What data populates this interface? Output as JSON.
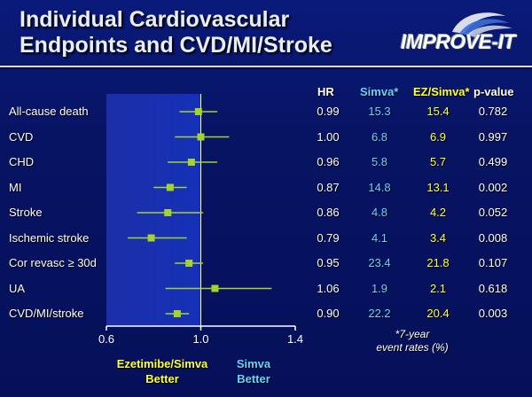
{
  "title_line1": "Individual Cardiovascular",
  "title_line2": "Endpoints and CVD/MI/Stroke",
  "logo_text": "IMPROVE-IT",
  "columns": {
    "hr": "HR",
    "simva": "Simva*",
    "ezsimva": "EZ/Simva*",
    "pvalue": "p-value"
  },
  "rows": [
    {
      "label": "All-cause death",
      "hr": "0.99",
      "simva": "15.3",
      "ezsimva": "15.4",
      "p": "0.782"
    },
    {
      "label": "CVD",
      "hr": "1.00",
      "simva": "6.8",
      "ezsimva": "6.9",
      "p": "0.997"
    },
    {
      "label": "CHD",
      "hr": "0.96",
      "simva": "5.8",
      "ezsimva": "5.7",
      "p": "0.499"
    },
    {
      "label": "MI",
      "hr": "0.87",
      "simva": "14.8",
      "ezsimva": "13.1",
      "p": "0.002"
    },
    {
      "label": "Stroke",
      "hr": "0.86",
      "simva": "4.8",
      "ezsimva": "4.2",
      "p": "0.052"
    },
    {
      "label": "Ischemic stroke",
      "hr": "0.79",
      "simva": "4.1",
      "ezsimva": "3.4",
      "p": "0.008"
    },
    {
      "label": "Cor revasc ≥ 30d",
      "hr": "0.95",
      "simva": "23.4",
      "ezsimva": "21.8",
      "p": "0.107"
    },
    {
      "label": "UA",
      "hr": "1.06",
      "simva": "1.9",
      "ezsimva": "2.1",
      "p": "0.618"
    },
    {
      "label": "CVD/MI/stroke",
      "hr": "0.90",
      "simva": "22.2",
      "ezsimva": "20.4",
      "p": "0.003"
    }
  ],
  "note_line1": "*7-year",
  "note_line2": "event rates (%)",
  "left_better_line1": "Ezetimibe/Simva",
  "left_better_line2": "Better",
  "right_better_line1": "Simva",
  "right_better_line2": "Better",
  "colors": {
    "background": "#071463",
    "marker": "#a6d22c",
    "cyan": "#66d4ff",
    "yellow": "#ffff33"
  },
  "chart_data": {
    "type": "forest",
    "xlim": [
      0.6,
      1.4
    ],
    "x_ticks": [
      "0.6",
      "1.0",
      "1.4"
    ],
    "reference_line": 1.0,
    "categories": [
      "All-cause death",
      "CVD",
      "CHD",
      "MI",
      "Stroke",
      "Ischemic stroke",
      "Cor revasc ≥ 30d",
      "UA",
      "CVD/MI/stroke"
    ],
    "hr": [
      0.99,
      1.0,
      0.96,
      0.87,
      0.86,
      0.79,
      0.95,
      1.06,
      0.9
    ],
    "ci_low": [
      0.91,
      0.89,
      0.86,
      0.8,
      0.73,
      0.69,
      0.89,
      0.85,
      0.85
    ],
    "ci_high": [
      1.07,
      1.12,
      1.07,
      0.94,
      1.01,
      0.94,
      1.01,
      1.3,
      0.95
    ]
  }
}
